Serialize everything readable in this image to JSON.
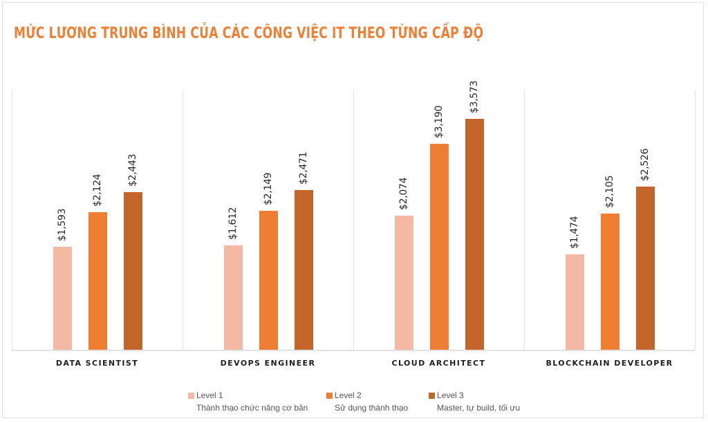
{
  "title": "MỨC LƯƠNG TRUNG BÌNH CỦA CÁC CÔNG VIỆC IT THEO TỪNG CẤP ĐỘ",
  "colors": {
    "level1": "#f4b8a4",
    "level2": "#ee7e33",
    "level3": "#c3652a",
    "title": "#ef7f34"
  },
  "chart_data": {
    "type": "bar",
    "title": "MỨC LƯƠNG TRUNG BÌNH CỦA CÁC CÔNG VIỆC IT THEO TỪNG CẤP ĐỘ",
    "categories": [
      "DATA SCIENTIST",
      "DEVOPS ENGINEER",
      "CLOUD ARCHITECT",
      "BLOCKCHAIN DEVELOPER"
    ],
    "series": [
      {
        "name": "Level 1",
        "description": "Thành thạo chức năng cơ bản",
        "values": [
          1593,
          1612,
          2074,
          1474
        ],
        "labels": [
          "$1,593",
          "$1,612",
          "$2,074",
          "$1,474"
        ]
      },
      {
        "name": "Level 2",
        "description": "Sử dụng thành thạo",
        "values": [
          2124,
          2149,
          3190,
          2105
        ],
        "labels": [
          "$2,124",
          "$2,149",
          "$3,190",
          "$2,105"
        ]
      },
      {
        "name": "Level 3",
        "description": "Master, tự build, tối ưu",
        "values": [
          2443,
          2471,
          3573,
          2526
        ],
        "labels": [
          "$2,443",
          "$2,471",
          "$3,573",
          "$2,526"
        ]
      }
    ],
    "xlabel": "",
    "ylabel": "",
    "ylim": [
      0,
      4000
    ],
    "grid": "vertical category separators",
    "legend_position": "bottom"
  },
  "legend": [
    {
      "title": "Level 1",
      "sub": "Thành thạo chức năng cơ bản"
    },
    {
      "title": "Level 2",
      "sub": "Sử dụng thành thạo"
    },
    {
      "title": "Level 3",
      "sub": "Master, tự build, tối ưu"
    }
  ]
}
